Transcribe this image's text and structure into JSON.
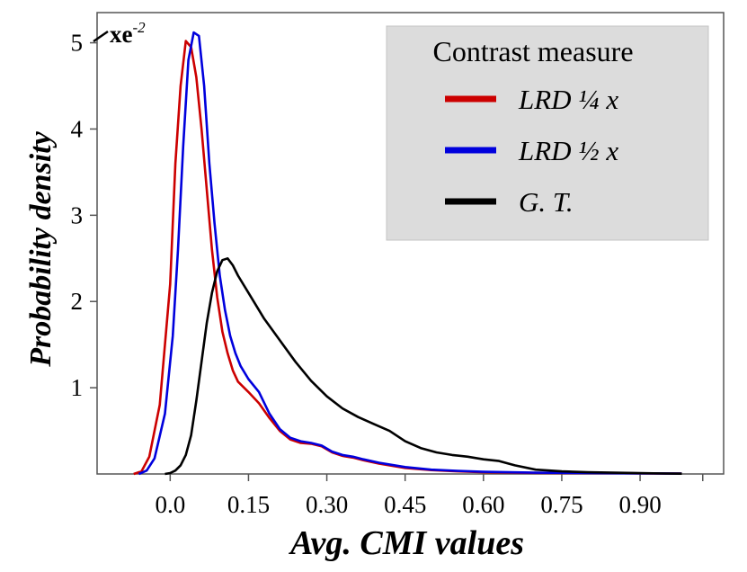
{
  "chart_data": {
    "type": "line",
    "xlabel": "Avg. CMI values",
    "ylabel": "Probability density",
    "scale_label": "xe",
    "scale_exponent": "-2",
    "xlim": [
      -0.14,
      1.06
    ],
    "ylim": [
      0,
      5.35
    ],
    "xticks": [
      "0.0",
      "0.15",
      "0.30",
      "0.45",
      "0.60",
      "0.75",
      "0.90"
    ],
    "yticks": [
      "1",
      "2",
      "3",
      "4",
      "5"
    ],
    "legend": {
      "title": "Contrast measure",
      "position": "top-right",
      "background": "#dcdcdc"
    },
    "series": [
      {
        "name": "LRD ¼ x",
        "color": "#cc0000",
        "points": [
          [
            -0.07,
            0
          ],
          [
            -0.055,
            0.03
          ],
          [
            -0.04,
            0.2
          ],
          [
            -0.02,
            0.8
          ],
          [
            0,
            2.2
          ],
          [
            0.01,
            3.6
          ],
          [
            0.02,
            4.5
          ],
          [
            0.03,
            5.02
          ],
          [
            0.04,
            4.95
          ],
          [
            0.05,
            4.6
          ],
          [
            0.06,
            4.0
          ],
          [
            0.07,
            3.3
          ],
          [
            0.08,
            2.6
          ],
          [
            0.09,
            2.05
          ],
          [
            0.1,
            1.65
          ],
          [
            0.11,
            1.4
          ],
          [
            0.12,
            1.2
          ],
          [
            0.13,
            1.07
          ],
          [
            0.15,
            0.95
          ],
          [
            0.17,
            0.82
          ],
          [
            0.19,
            0.65
          ],
          [
            0.21,
            0.5
          ],
          [
            0.23,
            0.4
          ],
          [
            0.25,
            0.36
          ],
          [
            0.27,
            0.35
          ],
          [
            0.29,
            0.32
          ],
          [
            0.31,
            0.25
          ],
          [
            0.33,
            0.21
          ],
          [
            0.35,
            0.19
          ],
          [
            0.37,
            0.16
          ],
          [
            0.4,
            0.12
          ],
          [
            0.45,
            0.07
          ],
          [
            0.5,
            0.045
          ],
          [
            0.55,
            0.03
          ],
          [
            0.6,
            0.02
          ],
          [
            0.7,
            0.012
          ],
          [
            0.8,
            0.01
          ],
          [
            0.9,
            0.007
          ],
          [
            0.98,
            0.004
          ]
        ]
      },
      {
        "name": "LRD ½ x",
        "color": "#0000dd",
        "points": [
          [
            -0.06,
            0
          ],
          [
            -0.045,
            0.04
          ],
          [
            -0.03,
            0.18
          ],
          [
            -0.01,
            0.7
          ],
          [
            0.005,
            1.6
          ],
          [
            0.015,
            2.6
          ],
          [
            0.025,
            3.8
          ],
          [
            0.035,
            4.8
          ],
          [
            0.045,
            5.12
          ],
          [
            0.055,
            5.08
          ],
          [
            0.065,
            4.5
          ],
          [
            0.075,
            3.6
          ],
          [
            0.085,
            2.9
          ],
          [
            0.095,
            2.3
          ],
          [
            0.105,
            1.9
          ],
          [
            0.115,
            1.6
          ],
          [
            0.125,
            1.4
          ],
          [
            0.135,
            1.25
          ],
          [
            0.15,
            1.1
          ],
          [
            0.17,
            0.95
          ],
          [
            0.19,
            0.7
          ],
          [
            0.21,
            0.52
          ],
          [
            0.23,
            0.42
          ],
          [
            0.25,
            0.38
          ],
          [
            0.27,
            0.36
          ],
          [
            0.29,
            0.33
          ],
          [
            0.31,
            0.26
          ],
          [
            0.33,
            0.22
          ],
          [
            0.35,
            0.2
          ],
          [
            0.37,
            0.17
          ],
          [
            0.4,
            0.13
          ],
          [
            0.45,
            0.08
          ],
          [
            0.5,
            0.05
          ],
          [
            0.55,
            0.035
          ],
          [
            0.6,
            0.025
          ],
          [
            0.7,
            0.015
          ],
          [
            0.8,
            0.01
          ],
          [
            0.9,
            0.007
          ],
          [
            0.98,
            0.004
          ]
        ]
      },
      {
        "name": "G. T.",
        "color": "#000000",
        "points": [
          [
            -0.01,
            0
          ],
          [
            0,
            0.01
          ],
          [
            0.01,
            0.04
          ],
          [
            0.02,
            0.1
          ],
          [
            0.03,
            0.22
          ],
          [
            0.04,
            0.45
          ],
          [
            0.05,
            0.85
          ],
          [
            0.06,
            1.3
          ],
          [
            0.07,
            1.75
          ],
          [
            0.08,
            2.1
          ],
          [
            0.09,
            2.35
          ],
          [
            0.1,
            2.48
          ],
          [
            0.11,
            2.5
          ],
          [
            0.12,
            2.42
          ],
          [
            0.13,
            2.3
          ],
          [
            0.15,
            2.1
          ],
          [
            0.18,
            1.8
          ],
          [
            0.21,
            1.55
          ],
          [
            0.24,
            1.3
          ],
          [
            0.27,
            1.08
          ],
          [
            0.3,
            0.9
          ],
          [
            0.33,
            0.76
          ],
          [
            0.36,
            0.66
          ],
          [
            0.39,
            0.58
          ],
          [
            0.42,
            0.5
          ],
          [
            0.45,
            0.38
          ],
          [
            0.48,
            0.3
          ],
          [
            0.51,
            0.25
          ],
          [
            0.54,
            0.22
          ],
          [
            0.57,
            0.2
          ],
          [
            0.6,
            0.17
          ],
          [
            0.63,
            0.15
          ],
          [
            0.66,
            0.1
          ],
          [
            0.7,
            0.05
          ],
          [
            0.75,
            0.03
          ],
          [
            0.8,
            0.02
          ],
          [
            0.85,
            0.015
          ],
          [
            0.9,
            0.01
          ],
          [
            0.95,
            0.005
          ],
          [
            0.98,
            0.003
          ]
        ]
      }
    ]
  }
}
